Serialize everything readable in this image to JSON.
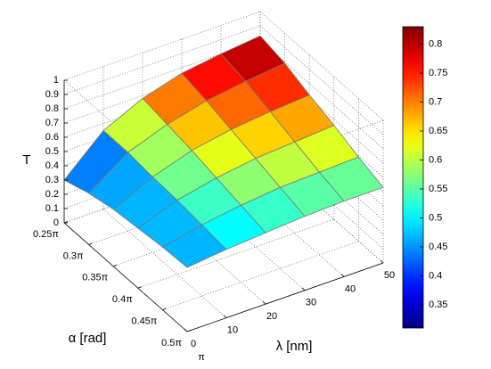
{
  "chart_data": {
    "type": "surface",
    "x_label": "λ [nm]",
    "y_label": "α [rad]",
    "z_label": "T",
    "x": [
      0,
      10,
      20,
      30,
      40,
      50
    ],
    "y": [
      0.25,
      0.3,
      0.35,
      0.4,
      0.45,
      0.5
    ],
    "z": [
      [
        0.3,
        0.55,
        0.68,
        0.76,
        0.8,
        0.83
      ],
      [
        0.36,
        0.55,
        0.65,
        0.72,
        0.76,
        0.79
      ],
      [
        0.4,
        0.53,
        0.62,
        0.67,
        0.7,
        0.72
      ],
      [
        0.42,
        0.52,
        0.58,
        0.62,
        0.64,
        0.66
      ],
      [
        0.44,
        0.5,
        0.54,
        0.57,
        0.58,
        0.59
      ],
      [
        0.45,
        0.48,
        0.5,
        0.52,
        0.53,
        0.53
      ]
    ],
    "xlim": [
      0,
      50
    ],
    "xticks": [
      0,
      10,
      20,
      30,
      40,
      50
    ],
    "ylim": [
      0.25,
      0.5
    ],
    "yticks": [
      {
        "value": 0.25,
        "label": "0.25π"
      },
      {
        "value": 0.3,
        "label": "0.3π"
      },
      {
        "value": 0.35,
        "label": "0.35π"
      },
      {
        "value": 0.4,
        "label": "0.4π"
      },
      {
        "value": 0.45,
        "label": "0.45π"
      },
      {
        "value": 0.5,
        "label": "0.5π"
      }
    ],
    "zlim": [
      0,
      1
    ],
    "zticks": [
      0,
      0.1,
      0.2,
      0.3,
      0.4,
      0.5,
      0.6,
      0.7,
      0.8,
      0.9,
      1
    ],
    "annotations": [
      "π"
    ],
    "colormap": "jet",
    "clim": [
      0.31,
      0.83
    ],
    "cticks": [
      0.35,
      0.4,
      0.45,
      0.5,
      0.55,
      0.6,
      0.65,
      0.7,
      0.75,
      0.8
    ],
    "grid": true
  }
}
